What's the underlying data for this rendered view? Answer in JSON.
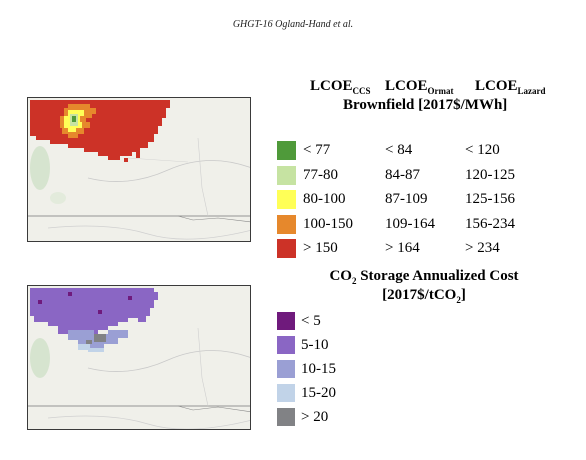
{
  "header": "GHGT-16 Ogland-Hand et al.",
  "lcoe_legend": {
    "col1": "LCOE",
    "col1_sub": "CCS",
    "col2": "LCOE",
    "col2_sub": "Ormat",
    "col3": "LCOE",
    "col3_sub": "Lazard",
    "subtitle": "Brownfield [2017$/MWh]",
    "rows": [
      {
        "color": "#4f9a3a",
        "ccs": "< 77",
        "ormat": "< 84",
        "lazard": "< 120"
      },
      {
        "color": "#c6e3a2",
        "ccs": "77-80",
        "ormat": "84-87",
        "lazard": "120-125"
      },
      {
        "color": "#ffff57",
        "ccs": "80-100",
        "ormat": "87-109",
        "lazard": "125-156"
      },
      {
        "color": "#e6882c",
        "ccs": "100-150",
        "ormat": "109-164",
        "lazard": "156-234"
      },
      {
        "color": "#cc3227",
        "ccs": "> 150",
        "ormat": "> 164",
        "lazard": "> 234"
      }
    ]
  },
  "storage_legend": {
    "title_line1_a": "CO",
    "title_line1_sub": "2",
    "title_line1_b": " Storage Annualized Cost",
    "title_line2_a": "[2017$/tCO",
    "title_line2_sub": "2",
    "title_line2_b": "]",
    "rows": [
      {
        "color": "#6f1a7c",
        "label": "< 5"
      },
      {
        "color": "#8a66c4",
        "label": "5-10"
      },
      {
        "color": "#9a9fd4",
        "label": "10-15"
      },
      {
        "color": "#c1d3e8",
        "label": "15-20"
      },
      {
        "color": "#818285",
        "label": "> 20"
      }
    ]
  }
}
